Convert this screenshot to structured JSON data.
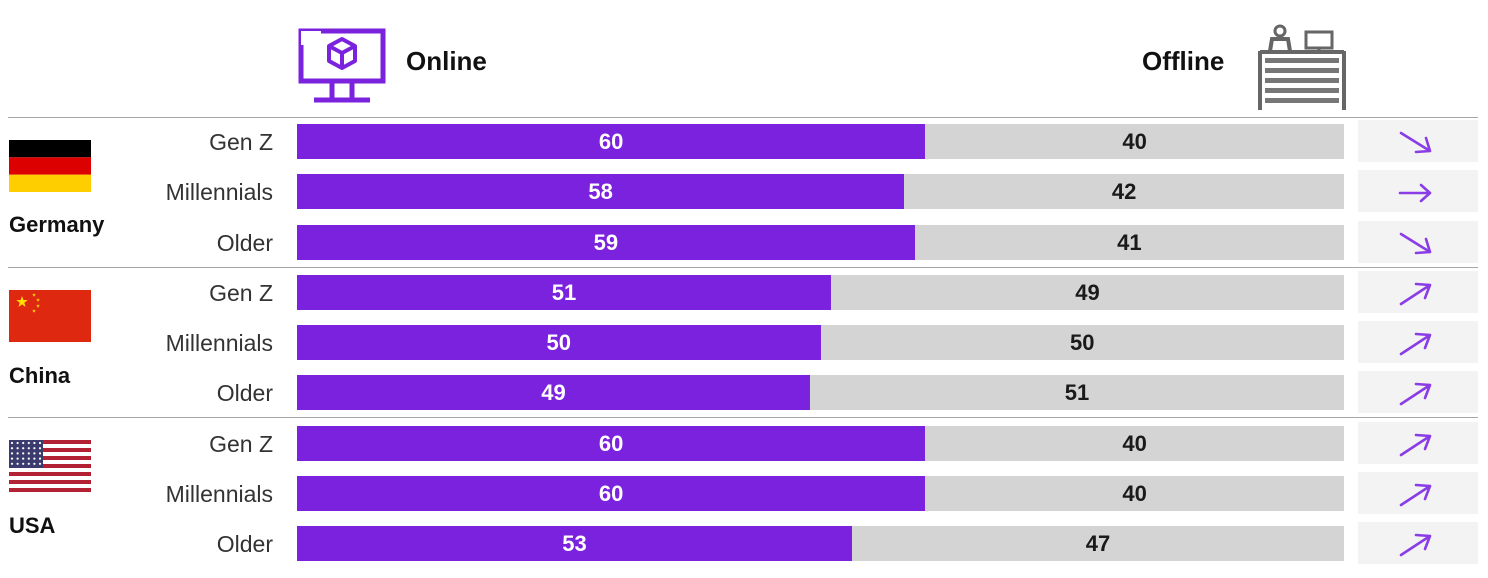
{
  "chart_data": {
    "type": "bar",
    "stacked": true,
    "orientation": "horizontal",
    "header": {
      "online_label": "Online",
      "offline_label": "Offline"
    },
    "colors": {
      "online": "#7b22de",
      "offline": "#d4d4d4",
      "trend_arrow": "#8a3ce6"
    },
    "groups": [
      {
        "country": "Germany",
        "flag": "germany-flag",
        "rows": [
          {
            "segment": "Gen Z",
            "online": 60,
            "offline": 40,
            "trend": "down"
          },
          {
            "segment": "Millennials",
            "online": 58,
            "offline": 42,
            "trend": "flat"
          },
          {
            "segment": "Older",
            "online": 59,
            "offline": 41,
            "trend": "down"
          }
        ]
      },
      {
        "country": "China",
        "flag": "china-flag",
        "rows": [
          {
            "segment": "Gen Z",
            "online": 51,
            "offline": 49,
            "trend": "up"
          },
          {
            "segment": "Millennials",
            "online": 50,
            "offline": 50,
            "trend": "up"
          },
          {
            "segment": "Older",
            "online": 49,
            "offline": 51,
            "trend": "up"
          }
        ]
      },
      {
        "country": "USA",
        "flag": "usa-flag",
        "rows": [
          {
            "segment": "Gen Z",
            "online": 60,
            "offline": 40,
            "trend": "up"
          },
          {
            "segment": "Millennials",
            "online": 60,
            "offline": 40,
            "trend": "up"
          },
          {
            "segment": "Older",
            "online": 53,
            "offline": 47,
            "trend": "up"
          }
        ]
      }
    ]
  },
  "icons": {
    "online": "computer-monitor-box-icon",
    "offline": "shop-counter-icon"
  }
}
